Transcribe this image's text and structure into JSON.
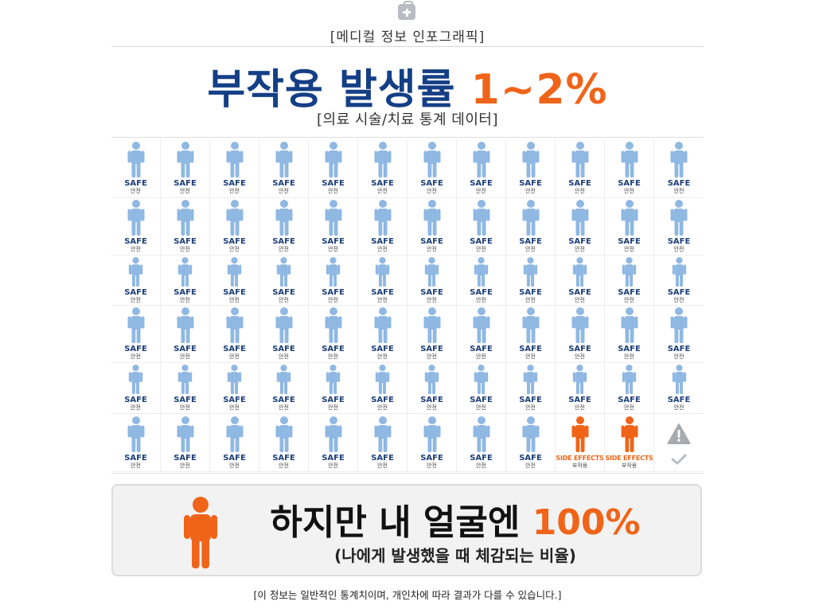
{
  "header": {
    "icon": "medical-kit-icon",
    "kicker": "[메디컬 정보 인포그래픽]",
    "title_main": "부작용 발생률 ",
    "title_accent": "1~2%",
    "subtitle": "[의료 시술/치료 통계 데이터]"
  },
  "grid": {
    "columns": 12,
    "rows": 6,
    "safe_label": "SAFE",
    "safe_sublabel": "안전",
    "side_label": "SIDE EFFECTS",
    "side_sublabel": "부작용",
    "side_effect_cells": [
      {
        "row": 6,
        "col": 10
      },
      {
        "row": 6,
        "col": 11
      }
    ],
    "final_cell_icons": [
      "warning-triangle-icon",
      "checkmark-icon"
    ],
    "colors": {
      "safe": "#8fb8e3",
      "side": "#f06419",
      "title_blue": "#143f86",
      "warn_gray": "#a7aaaf"
    }
  },
  "callout": {
    "icon": "person-icon",
    "main": "하지만 내 얼굴엔 ",
    "accent": "100%",
    "sub": "(나에게 발생했을 때 체감되는 비율)"
  },
  "footnote": "[이 정보는 일반적인 통계치이며, 개인차에 따라 결과가 다를 수 있습니다.]"
}
